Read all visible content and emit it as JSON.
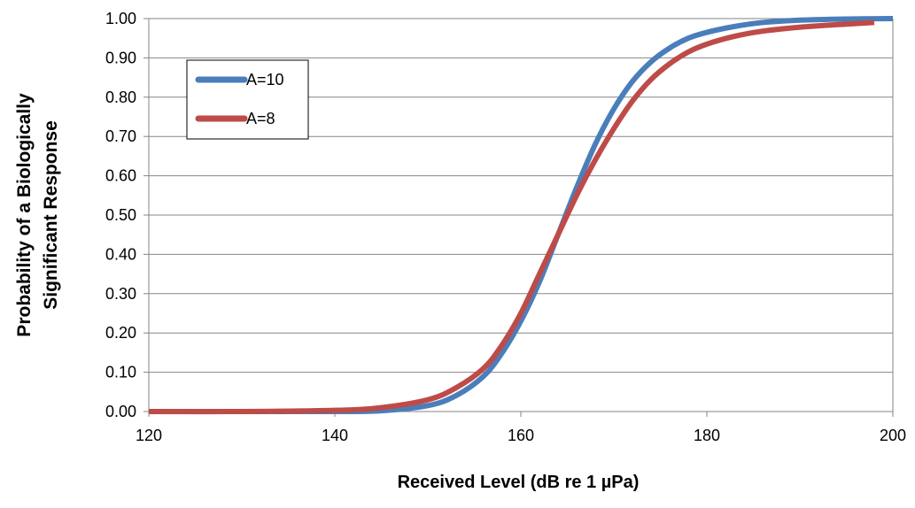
{
  "chart_data": {
    "type": "line",
    "title": "",
    "xlabel": "Received Level (dB re 1 µPa)",
    "ylabel_lines": [
      "Probability of a Biologically",
      "Significant Response"
    ],
    "xlim": [
      120,
      200
    ],
    "ylim": [
      0,
      1
    ],
    "x_ticks": [
      120,
      140,
      160,
      180,
      200
    ],
    "y_ticks": [
      0,
      0.1,
      0.2,
      0.3,
      0.4,
      0.5,
      0.6,
      0.7,
      0.8,
      0.9,
      1.0
    ],
    "x_tick_labels": [
      "120",
      "140",
      "160",
      "180",
      "200"
    ],
    "y_tick_labels": [
      "0.00",
      "0.10",
      "0.20",
      "0.30",
      "0.40",
      "0.50",
      "0.60",
      "0.70",
      "0.80",
      "0.90",
      "1.00"
    ],
    "grid": "horizontal",
    "legend_placement": "top-left",
    "series": [
      {
        "name": "A=10",
        "color": "#4a7ebb",
        "x": [
          120,
          130,
          140,
          145,
          150,
          153,
          156,
          158,
          160,
          162,
          164,
          166,
          168,
          170,
          172,
          174,
          176,
          178,
          180,
          183,
          186,
          190,
          195,
          200
        ],
        "y": [
          0,
          0,
          0,
          0.002,
          0.015,
          0.04,
          0.09,
          0.15,
          0.23,
          0.33,
          0.45,
          0.57,
          0.68,
          0.77,
          0.84,
          0.89,
          0.925,
          0.95,
          0.965,
          0.98,
          0.99,
          0.996,
          0.999,
          1.0
        ]
      },
      {
        "name": "A=8",
        "color": "#be4b48",
        "x": [
          120,
          130,
          140,
          145,
          150,
          153,
          156,
          158,
          160,
          162,
          164,
          166,
          168,
          170,
          172,
          174,
          176,
          178,
          180,
          183,
          186,
          190,
          195,
          198
        ],
        "y": [
          0,
          0,
          0.003,
          0.01,
          0.03,
          0.06,
          0.11,
          0.17,
          0.25,
          0.35,
          0.45,
          0.55,
          0.64,
          0.72,
          0.79,
          0.845,
          0.885,
          0.915,
          0.935,
          0.955,
          0.968,
          0.978,
          0.986,
          0.99
        ]
      }
    ]
  }
}
